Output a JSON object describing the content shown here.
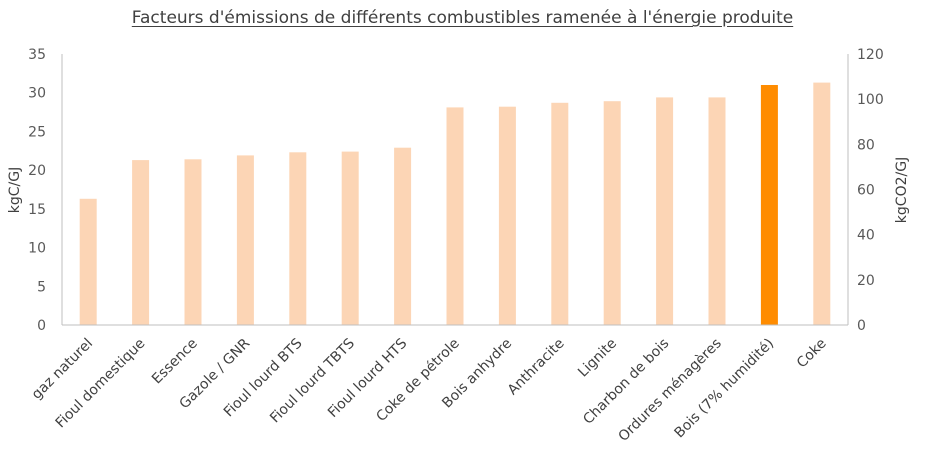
{
  "chart_data": {
    "type": "bar",
    "title": "Facteurs d'émissions de différents combustibles ramenée à l'énergie produite",
    "ylabel": "kgC/GJ",
    "y2label": "kgCO2/GJ",
    "ylim": [
      0,
      35
    ],
    "y2lim": [
      0,
      120
    ],
    "yticks": [
      "0",
      "5",
      "10",
      "15",
      "20",
      "25",
      "30",
      "35"
    ],
    "y2ticks": [
      "0",
      "20",
      "40",
      "60",
      "80",
      "100",
      "120"
    ],
    "grid": false,
    "legend": "none",
    "categories": [
      "gaz naturel",
      "Fioul domestique",
      "Essence",
      "Gazole / GNR",
      "Fioul lourd BTS",
      "Fioul lourd TBTS",
      "Fioul lourd HTS",
      "Coke de pétrole",
      "Bois anhydre",
      "Anthracite",
      "Lignite",
      "Charbon de bois",
      "Ordures ménagères",
      "Bois (7% humidité)",
      "Coke"
    ],
    "values": [
      16.3,
      21.3,
      21.4,
      21.9,
      22.3,
      22.4,
      22.9,
      28.1,
      28.2,
      28.7,
      28.9,
      29.4,
      29.4,
      31.0,
      31.3
    ],
    "highlight_index": 13,
    "colors": {
      "bar": "#fcd5b5",
      "highlight": "#ff8c00",
      "axis": "#bfbfbf",
      "text": "#595959"
    }
  }
}
